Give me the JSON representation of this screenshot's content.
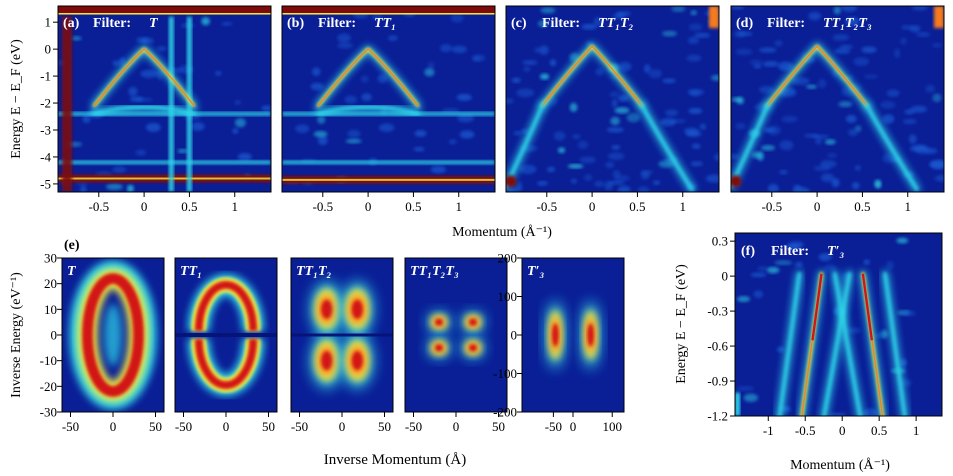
{
  "colors": {
    "bg": "#0a1e96",
    "bg_deep": "#061478",
    "cyan": "#2fd4e8",
    "yellow": "#f6ee3c",
    "orange": "#f77a1c",
    "red": "#d21414",
    "darkred": "#7e0a0a",
    "white": "#ffffff"
  },
  "chart_data": [
    {
      "id": "a",
      "type": "heatmap",
      "panel_label": "(a)",
      "title_prefix": "Filter:",
      "title": "T",
      "xlim": [
        -0.95,
        1.4
      ],
      "ylim": [
        -5.3,
        1.6
      ],
      "xticks": [
        -0.5,
        0,
        0.5,
        1
      ],
      "xtick_labels": [
        "-0.5",
        "0",
        "0.5",
        "1"
      ],
      "yticks": [
        1,
        0,
        -1,
        -2,
        -3,
        -4,
        -5
      ],
      "ytick_labels": [
        "1",
        "0",
        "-1",
        "-2",
        "-3",
        "-4",
        "-5"
      ],
      "ylabel": "Energy E − E_F (eV)",
      "features": {
        "vertex": [
          0,
          0
        ],
        "apex_strength": 0.95,
        "bands": [
          -2.4,
          -4.2,
          -4.8
        ],
        "verticals": [
          -0.85,
          0.3,
          0.5
        ],
        "top_strip": 1.45
      }
    },
    {
      "id": "b",
      "type": "heatmap",
      "panel_label": "(b)",
      "title_prefix": "Filter:",
      "title": "TT₁",
      "xlim": [
        -0.95,
        1.4
      ],
      "ylim": [
        -5.3,
        1.6
      ],
      "xticks": [
        -0.5,
        0,
        0.5,
        1
      ],
      "xtick_labels": [
        "-0.5",
        "0",
        "0.5",
        "1"
      ],
      "features": {
        "vertex": [
          0,
          0
        ],
        "bands": [
          -2.4,
          -4.2,
          -4.85
        ],
        "top_strip": 1.45
      }
    },
    {
      "id": "c",
      "type": "heatmap",
      "panel_label": "(c)",
      "title_prefix": "Filter:",
      "title": "TT₁T₂",
      "xlim": [
        -0.95,
        1.4
      ],
      "ylim": [
        -5.3,
        1.6
      ],
      "xticks": [
        -0.5,
        0,
        0.5,
        1
      ],
      "xtick_labels": [
        "-0.5",
        "0",
        "0.5",
        "1"
      ],
      "features": {
        "vertex": [
          0,
          0.1
        ]
      }
    },
    {
      "id": "d",
      "type": "heatmap",
      "panel_label": "(d)",
      "title_prefix": "Filter:",
      "title": "TT₁T₂T₃",
      "xlim": [
        -0.95,
        1.4
      ],
      "ylim": [
        -5.3,
        1.6
      ],
      "xticks": [
        -0.5,
        0,
        0.5,
        1
      ],
      "xtick_labels": [
        "-0.5",
        "0",
        "0.5",
        "1"
      ],
      "features": {
        "vertex": [
          0,
          0.1
        ]
      }
    },
    {
      "id": "e1",
      "type": "heatmap",
      "panel_group_label": "(e)",
      "title": "T",
      "xlim": [
        -60,
        60
      ],
      "ylim": [
        -30,
        30
      ],
      "xticks": [
        -50,
        0,
        50
      ],
      "xtick_labels": [
        "-50",
        "0",
        "50"
      ],
      "yticks": [
        30,
        20,
        10,
        0,
        -10,
        -20,
        -30
      ],
      "ytick_labels": [
        "30",
        "20",
        "10",
        "0",
        "-10",
        "-20",
        "-30"
      ],
      "ylabel": "Inverse Energy (eV⁻¹)",
      "pattern": "ring"
    },
    {
      "id": "e2",
      "type": "heatmap",
      "title": "TT₁",
      "xlim": [
        -60,
        60
      ],
      "ylim": [
        -30,
        30
      ],
      "xticks": [
        -50,
        0,
        50
      ],
      "xtick_labels": [
        "-50",
        "0",
        "50"
      ],
      "pattern": "split-ring"
    },
    {
      "id": "e3",
      "type": "heatmap",
      "title": "TT₁T₂",
      "xlim": [
        -60,
        60
      ],
      "ylim": [
        -30,
        30
      ],
      "xticks": [
        -50,
        0,
        50
      ],
      "xtick_labels": [
        "-50",
        "0",
        "50"
      ],
      "pattern": "four-lobe"
    },
    {
      "id": "e4",
      "type": "heatmap",
      "title": "TT₁T₂T₃",
      "xlim": [
        -60,
        60
      ],
      "ylim": [
        -30,
        30
      ],
      "xticks": [
        -50,
        0,
        50
      ],
      "xtick_labels": [
        "-50",
        "0",
        "50"
      ],
      "pattern": "four-small"
    },
    {
      "id": "e5",
      "type": "heatmap",
      "title": "T′₃",
      "xlim": [
        -130,
        130
      ],
      "ylim": [
        -200,
        200
      ],
      "xticks": [
        -50,
        0,
        100
      ],
      "xtick_labels": [
        "-50",
        "0",
        "100"
      ],
      "yticks": [
        200,
        100,
        0,
        -100,
        -200
      ],
      "ytick_labels": [
        "200",
        "100",
        "0",
        "-100",
        "-200"
      ],
      "pattern": "two-lobe"
    },
    {
      "id": "f",
      "type": "heatmap",
      "panel_label": "(f)",
      "title_prefix": "Filter:",
      "title": "T′₃",
      "xlim": [
        -1.45,
        1.35
      ],
      "ylim": [
        -1.2,
        0.37
      ],
      "xticks": [
        -1,
        -0.5,
        0,
        0.5,
        1
      ],
      "xtick_labels": [
        "-1",
        "-0.5",
        "0",
        "0.5",
        "1"
      ],
      "yticks": [
        0.3,
        0,
        -0.3,
        -0.6,
        -0.9,
        -1.2
      ],
      "ytick_labels": [
        "0.3",
        "0",
        "-0.3",
        "-0.6",
        "-0.9",
        "-1.2"
      ],
      "ylabel": "Energy E − E_F (eV)",
      "xlabel": "Momentum (Å⁻¹)",
      "features": {
        "lines": [
          {
            "top_x": -0.58,
            "bottom_x": -0.85,
            "strength": 0.5
          },
          {
            "top_x": -0.28,
            "bottom_x": -0.55,
            "strength": 0.95
          },
          {
            "top_x": 0.28,
            "bottom_x": 0.55,
            "strength": 0.95
          },
          {
            "top_x": 0.58,
            "bottom_x": 0.85,
            "strength": 0.5
          },
          {
            "top_x": -0.1,
            "bottom_x": 0.25,
            "strength": 0.4
          },
          {
            "top_x": 0.1,
            "bottom_x": -0.25,
            "strength": 0.4
          }
        ]
      }
    }
  ],
  "shared": {
    "xlabel_top": "Momentum (Å⁻¹)",
    "xlabel_bottom": "Inverse Momentum (Å)"
  }
}
